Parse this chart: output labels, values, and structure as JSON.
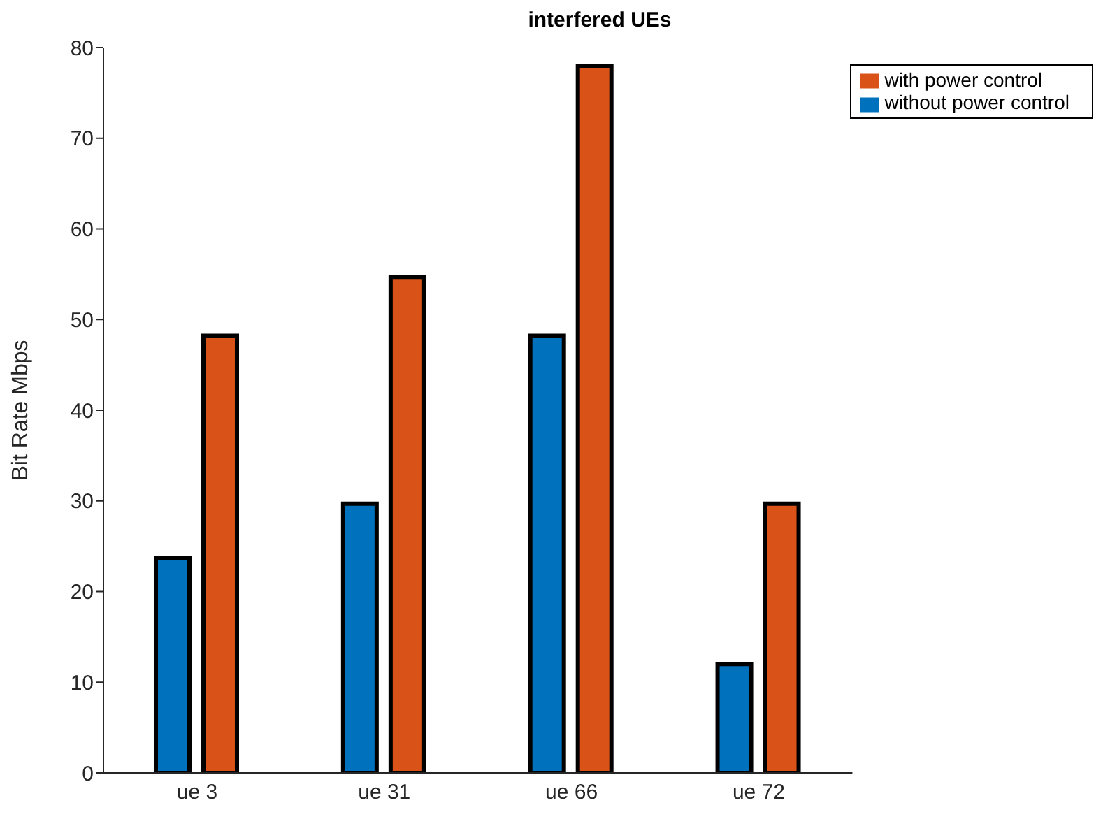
{
  "chart_data": {
    "type": "bar",
    "title": "interfered UEs",
    "ylabel": "Bit Rate Mbps",
    "categories": [
      "ue 3",
      "ue 31",
      "ue 66",
      "ue 72"
    ],
    "series": [
      {
        "name": "without power control",
        "color": "#0072bd",
        "values": [
          23.7,
          29.7,
          48.2,
          12
        ]
      },
      {
        "name": "with power control",
        "color": "#d95319",
        "values": [
          48.2,
          54.7,
          78,
          29.7
        ]
      }
    ],
    "ylim": [
      0,
      80
    ],
    "yticks": [
      0,
      10,
      20,
      30,
      40,
      50,
      60,
      70,
      80
    ],
    "grid": false,
    "legend": "top right"
  }
}
